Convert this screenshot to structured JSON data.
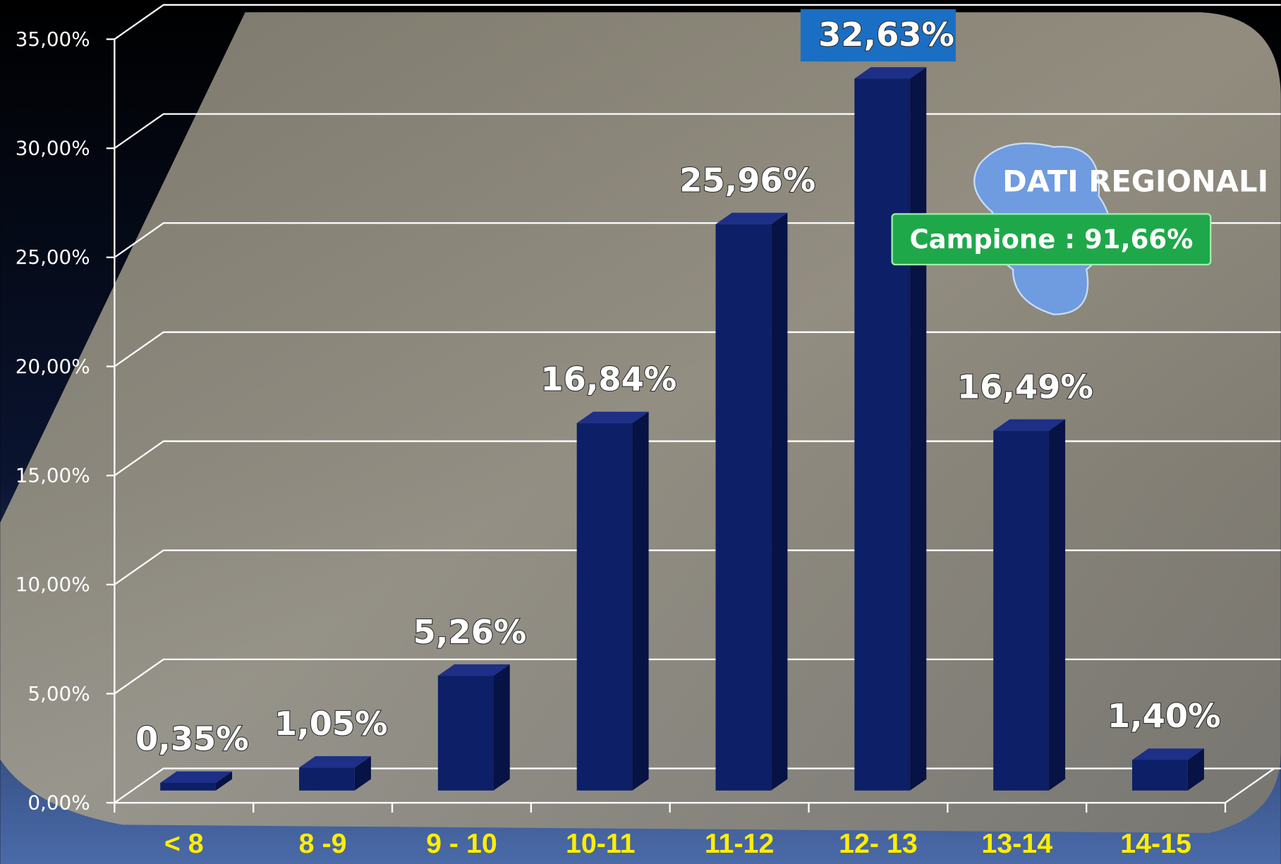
{
  "chart_data": {
    "type": "bar",
    "categories": [
      "< 8",
      "8 -9",
      "9 - 10",
      "10-11",
      "11-12",
      "12- 13",
      "13-14",
      "14-15"
    ],
    "values": [
      0.35,
      1.05,
      5.26,
      16.84,
      25.96,
      32.63,
      16.49,
      1.4
    ],
    "value_labels": [
      "0,35%",
      "1,05%",
      "5,26%",
      "16,84%",
      "25,96%",
      "32,63%",
      "16,49%",
      "1,40%"
    ],
    "color": "#0d1f66",
    "ylim": [
      0,
      35
    ],
    "yticks": [
      {
        "value": 0,
        "label": "0,00%"
      },
      {
        "value": 5,
        "label": "5,00%"
      },
      {
        "value": 10,
        "label": "10,00%"
      },
      {
        "value": 15,
        "label": "15,00%"
      },
      {
        "value": 20,
        "label": "20,00%"
      },
      {
        "value": 25,
        "label": "25,00%"
      },
      {
        "value": 30,
        "label": "30,00%"
      },
      {
        "value": 35,
        "label": "35,00%"
      }
    ],
    "grid": true,
    "annotations": [
      "DATI REGIONALI",
      "Campione : 91,66%"
    ]
  }
}
